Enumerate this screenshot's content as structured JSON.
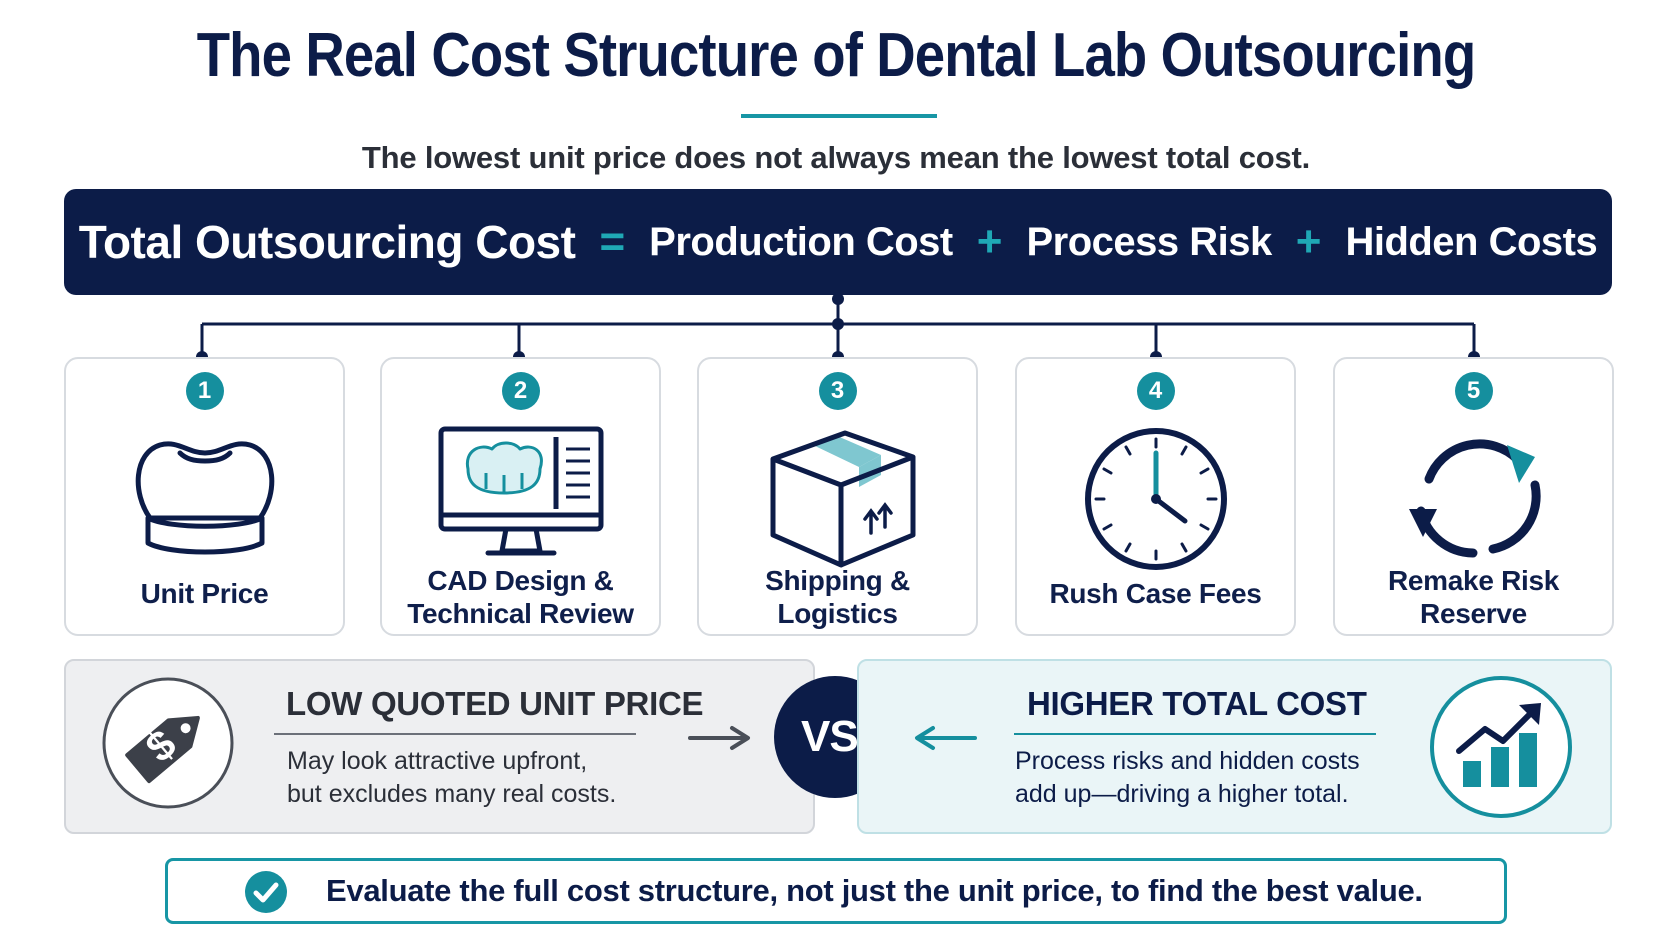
{
  "header": {
    "title": "The Real Cost Structure of Dental Lab Outsourcing",
    "subtitle": "The lowest unit price does not always mean the lowest total cost."
  },
  "equation": {
    "total": "Total Outsourcing Cost",
    "equals": "=",
    "term1": "Production Cost",
    "plus1": "+",
    "term2": "Process Risk",
    "plus2": "+",
    "term3": "Hidden Costs"
  },
  "components": [
    {
      "number": "1",
      "label_lines": [
        "Unit Price"
      ],
      "icon": "tooth-crown-icon"
    },
    {
      "number": "2",
      "label_lines": [
        "CAD Design &",
        "Technical Review"
      ],
      "icon": "monitor-cad-icon"
    },
    {
      "number": "3",
      "label_lines": [
        "Shipping &",
        "Logistics"
      ],
      "icon": "package-box-icon"
    },
    {
      "number": "4",
      "label_lines": [
        "Rush Case Fees"
      ],
      "icon": "clock-icon"
    },
    {
      "number": "5",
      "label_lines": [
        "Remake Risk",
        "Reserve"
      ],
      "icon": "refresh-cycle-icon"
    }
  ],
  "comparison": {
    "left": {
      "heading": "LOW QUOTED UNIT PRICE",
      "body_lines": [
        "May look attractive upfront,",
        "but excludes many real costs."
      ],
      "icon": "price-tag-dollar-icon"
    },
    "vs": "VS.",
    "right": {
      "heading": "HIGHER TOTAL COST",
      "body_lines": [
        "Process risks and hidden costs",
        "add up—driving a higher total."
      ],
      "icon": "rising-bar-chart-icon"
    }
  },
  "conclusion": {
    "text": "Evaluate the full cost structure, not just the unit price, to find the best value.",
    "icon": "check-circle-icon"
  },
  "colors": {
    "navy": "#0c1c48",
    "teal": "#158f9e",
    "light_teal_bg": "#eaf5f7",
    "gray_bg": "#eeeff1"
  }
}
